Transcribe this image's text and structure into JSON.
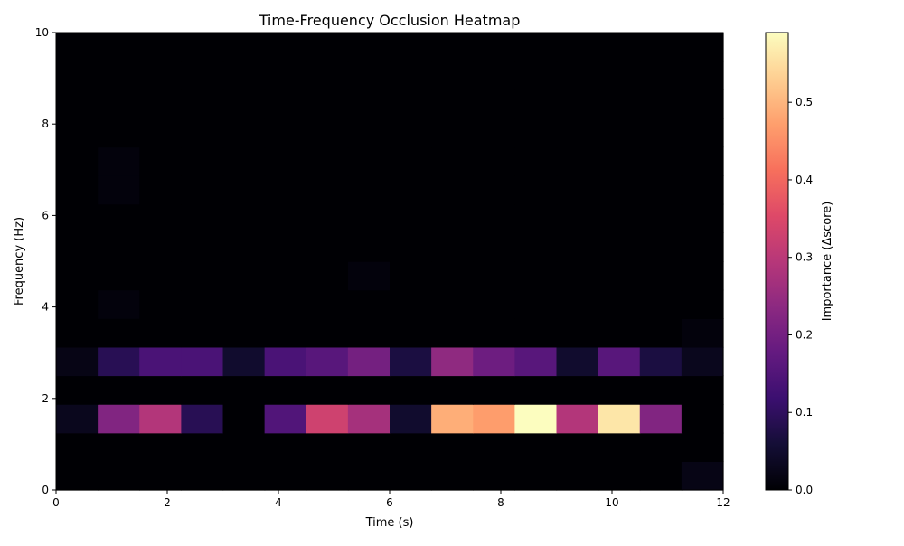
{
  "chart_data": {
    "type": "heatmap",
    "title": "Time-Frequency Occlusion Heatmap",
    "xlabel": "Time (s)",
    "ylabel": "Frequency (Hz)",
    "xlim": [
      0,
      12
    ],
    "ylim": [
      0,
      10
    ],
    "x_ticks": [
      "0",
      "2",
      "4",
      "6",
      "8",
      "10",
      "12"
    ],
    "y_ticks": [
      "0",
      "2",
      "4",
      "6",
      "8",
      "10"
    ],
    "x_tick_values": [
      0,
      2,
      4,
      6,
      8,
      10,
      12
    ],
    "y_tick_values": [
      0,
      2,
      4,
      6,
      8,
      10
    ],
    "time_bins": 16,
    "freq_bins": 16,
    "colormap": "magma",
    "colorbar": {
      "label": "Importance (Δscore)",
      "min": 0.0,
      "max": 0.59,
      "ticks": [
        "0.0",
        "0.1",
        "0.2",
        "0.3",
        "0.4",
        "0.5"
      ],
      "tick_values": [
        0.0,
        0.1,
        0.2,
        0.3,
        0.4,
        0.5
      ]
    },
    "values": [
      [
        0.0,
        0.0,
        0.0,
        0.0,
        0.0,
        0.0,
        0.0,
        0.0,
        0.0,
        0.0,
        0.0,
        0.0,
        0.0,
        0.0,
        0.0,
        0.02
      ],
      [
        0.0,
        0.0,
        0.0,
        0.0,
        0.0,
        0.0,
        0.0,
        0.0,
        0.0,
        0.0,
        0.0,
        0.0,
        0.0,
        0.0,
        0.0,
        0.0
      ],
      [
        0.03,
        0.22,
        0.29,
        0.09,
        0.0,
        0.15,
        0.33,
        0.27,
        0.05,
        0.49,
        0.47,
        0.59,
        0.29,
        0.56,
        0.22,
        0.0
      ],
      [
        0.0,
        0.0,
        0.0,
        0.0,
        0.0,
        0.0,
        0.0,
        0.0,
        0.0,
        0.0,
        0.0,
        0.0,
        0.0,
        0.0,
        0.0,
        0.0
      ],
      [
        0.02,
        0.09,
        0.14,
        0.14,
        0.05,
        0.14,
        0.16,
        0.2,
        0.07,
        0.24,
        0.19,
        0.16,
        0.05,
        0.16,
        0.07,
        0.03
      ],
      [
        0.0,
        0.0,
        0.0,
        0.0,
        0.0,
        0.0,
        0.0,
        0.0,
        0.0,
        0.0,
        0.0,
        0.0,
        0.0,
        0.0,
        0.0,
        0.01
      ],
      [
        0.0,
        0.01,
        0.0,
        0.0,
        0.0,
        0.0,
        0.0,
        0.0,
        0.0,
        0.0,
        0.0,
        0.0,
        0.0,
        0.0,
        0.0,
        0.0
      ],
      [
        0.0,
        0.0,
        0.0,
        0.0,
        0.0,
        0.0,
        0.0,
        0.01,
        0.0,
        0.0,
        0.0,
        0.0,
        0.0,
        0.0,
        0.0,
        0.0
      ],
      [
        0.0,
        0.0,
        0.0,
        0.0,
        0.0,
        0.0,
        0.0,
        0.0,
        0.0,
        0.0,
        0.0,
        0.0,
        0.0,
        0.0,
        0.0,
        0.0
      ],
      [
        0.0,
        0.0,
        0.0,
        0.0,
        0.0,
        0.0,
        0.0,
        0.0,
        0.0,
        0.0,
        0.0,
        0.0,
        0.0,
        0.0,
        0.0,
        0.0
      ],
      [
        0.0,
        0.01,
        0.0,
        0.0,
        0.0,
        0.0,
        0.0,
        0.0,
        0.0,
        0.0,
        0.0,
        0.0,
        0.0,
        0.0,
        0.0,
        0.0
      ],
      [
        0.0,
        0.01,
        0.0,
        0.0,
        0.0,
        0.0,
        0.0,
        0.0,
        0.0,
        0.0,
        0.0,
        0.0,
        0.0,
        0.0,
        0.0,
        0.0
      ],
      [
        0.0,
        0.0,
        0.0,
        0.0,
        0.0,
        0.0,
        0.0,
        0.0,
        0.0,
        0.0,
        0.0,
        0.0,
        0.0,
        0.0,
        0.0,
        0.0
      ],
      [
        0.0,
        0.0,
        0.0,
        0.0,
        0.0,
        0.0,
        0.0,
        0.0,
        0.0,
        0.0,
        0.0,
        0.0,
        0.0,
        0.0,
        0.0,
        0.0
      ],
      [
        0.0,
        0.0,
        0.0,
        0.0,
        0.0,
        0.0,
        0.0,
        0.0,
        0.0,
        0.0,
        0.0,
        0.0,
        0.0,
        0.0,
        0.0,
        0.0
      ],
      [
        0.0,
        0.0,
        0.0,
        0.0,
        0.0,
        0.0,
        0.0,
        0.0,
        0.0,
        0.0,
        0.0,
        0.0,
        0.0,
        0.0,
        0.0,
        0.0
      ]
    ]
  }
}
